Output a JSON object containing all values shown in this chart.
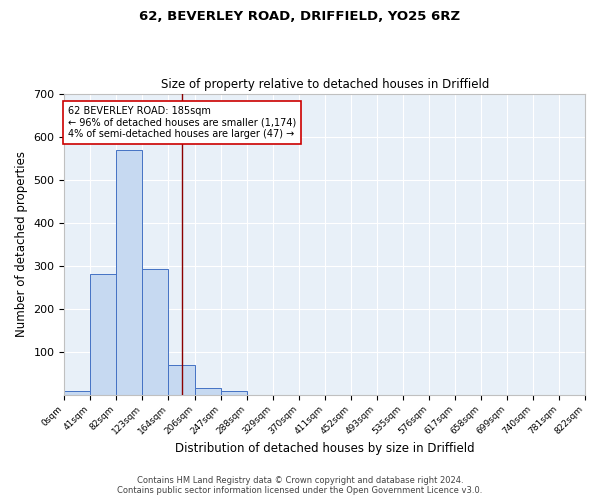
{
  "title1": "62, BEVERLEY ROAD, DRIFFIELD, YO25 6RZ",
  "title2": "Size of property relative to detached houses in Driffield",
  "xlabel": "Distribution of detached houses by size in Driffield",
  "ylabel": "Number of detached properties",
  "bin_edges": [
    0,
    41,
    82,
    123,
    164,
    206,
    247,
    288,
    329,
    370,
    411,
    452,
    493,
    535,
    576,
    617,
    658,
    699,
    740,
    781,
    822
  ],
  "bin_counts": [
    8,
    281,
    568,
    291,
    70,
    16,
    9,
    0,
    0,
    0,
    0,
    0,
    0,
    0,
    0,
    0,
    0,
    0,
    0,
    0
  ],
  "bar_facecolor": "#c6d9f1",
  "bar_edgecolor": "#4472c4",
  "vline_x": 185,
  "vline_color": "#8b0000",
  "annotation_text": "62 BEVERLEY ROAD: 185sqm\n← 96% of detached houses are smaller (1,174)\n4% of semi-detached houses are larger (47) →",
  "annotation_box_edgecolor": "#cc0000",
  "annotation_box_facecolor": "#ffffff",
  "ylim": [
    0,
    700
  ],
  "yticks": [
    0,
    100,
    200,
    300,
    400,
    500,
    600,
    700
  ],
  "background_color": "#e8f0f8",
  "grid_color": "#ffffff",
  "fig_background": "#ffffff",
  "footnote1": "Contains HM Land Registry data © Crown copyright and database right 2024.",
  "footnote2": "Contains public sector information licensed under the Open Government Licence v3.0.",
  "tick_labels": [
    "0sqm",
    "41sqm",
    "82sqm",
    "123sqm",
    "164sqm",
    "206sqm",
    "247sqm",
    "288sqm",
    "329sqm",
    "370sqm",
    "411sqm",
    "452sqm",
    "493sqm",
    "535sqm",
    "576sqm",
    "617sqm",
    "658sqm",
    "699sqm",
    "740sqm",
    "781sqm",
    "822sqm"
  ]
}
